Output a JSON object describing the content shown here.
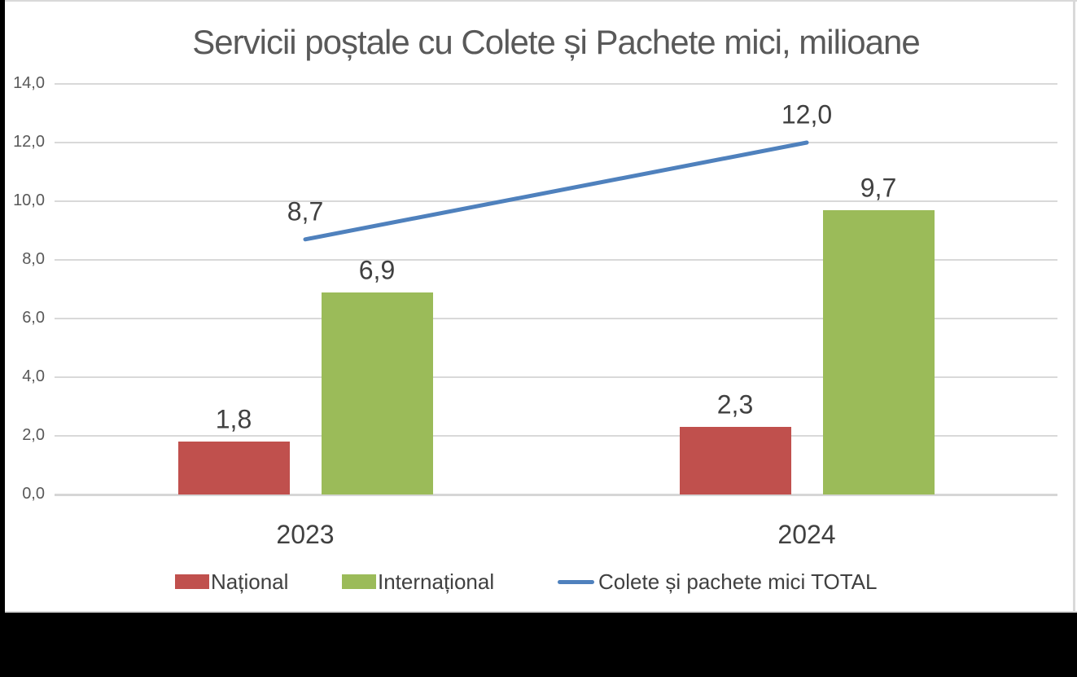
{
  "chart_data": {
    "type": "bar+line",
    "title": "Servicii poștale cu Colete și Pachete mici, milioane",
    "categories": [
      "2023",
      "2024"
    ],
    "series": [
      {
        "key": "national",
        "name": "Național",
        "type": "bar",
        "color": "#c0504d",
        "values": [
          1.8,
          2.3
        ],
        "labels": [
          "1,8",
          "2,3"
        ]
      },
      {
        "key": "international",
        "name": "Internațional",
        "type": "bar",
        "color": "#9bbb59",
        "values": [
          6.9,
          9.7
        ],
        "labels": [
          "6,9",
          "9,7"
        ]
      },
      {
        "key": "colete-total",
        "name": "Colete și pachete mici TOTAL",
        "type": "line",
        "color": "#4f81bd",
        "values": [
          8.7,
          12.0
        ],
        "labels": [
          "8,7",
          "12,0"
        ]
      }
    ],
    "ylim": [
      0,
      14
    ],
    "ytick_step": 2,
    "ytick_labels": [
      "0,0",
      "2,0",
      "4,0",
      "6,0",
      "8,0",
      "10,0",
      "12,0",
      "14,0"
    ],
    "grid": true,
    "legend_position": "bottom",
    "label_color": "#404040",
    "axis_label_color": "#595959",
    "gridline_color": "#d9d9d9"
  }
}
